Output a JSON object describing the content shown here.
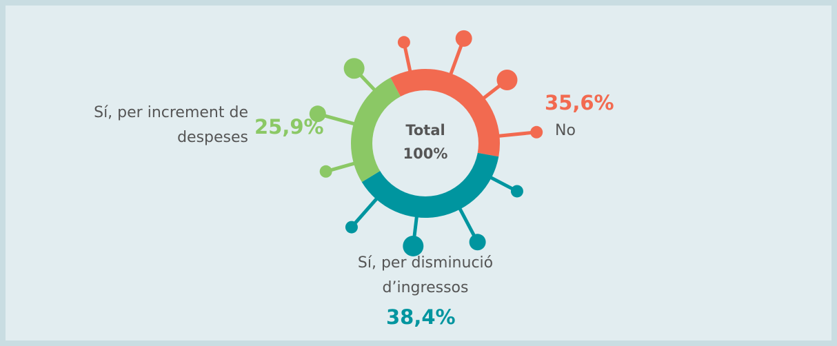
{
  "chart_data": {
    "type": "donut",
    "center_title": "Total",
    "center_text": "100%",
    "categories": [
      "No",
      "Sí, per disminució d’ingressos",
      "Sí, per increment de despeses"
    ],
    "values": [
      35.6,
      38.4,
      25.9
    ],
    "value_labels": [
      "35,6%",
      "38,4%",
      "25,9%"
    ],
    "colors": [
      "#f26a50",
      "#00959f",
      "#8bc865"
    ]
  }
}
